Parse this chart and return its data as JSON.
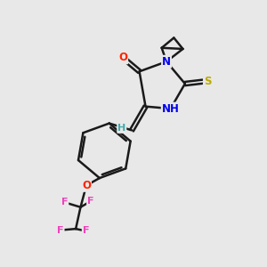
{
  "bg_color": "#e8e8e8",
  "bond_color": "#1a1a1a",
  "bond_width": 1.8,
  "atom_colors": {
    "O": "#ff2200",
    "N": "#0000ee",
    "S": "#bbaa00",
    "F": "#ee44bb",
    "H": "#44aaaa",
    "C": "#1a1a1a"
  },
  "font_size": 8.5,
  "fig_size": [
    3.0,
    3.0
  ],
  "dpi": 100
}
